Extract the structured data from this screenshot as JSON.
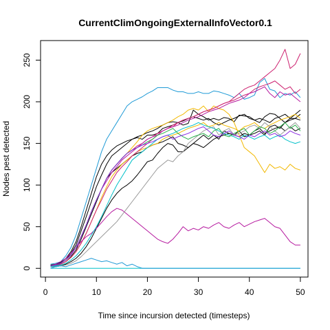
{
  "chart_data": {
    "type": "line",
    "title": "CurrentClimOngoingExternalInfoVector0.1",
    "xlabel": "Time since incursion detected (timesteps)",
    "ylabel": "Nodes pest detected",
    "xlim": [
      0,
      50
    ],
    "ylim": [
      0,
      265
    ],
    "xticks": [
      "0",
      "10",
      "20",
      "30",
      "40",
      "50"
    ],
    "yticks": [
      "0",
      "50",
      "100",
      "150",
      "200",
      "250"
    ],
    "grid": false,
    "x": [
      1,
      2,
      3,
      4,
      5,
      6,
      7,
      8,
      9,
      10,
      11,
      12,
      13,
      14,
      15,
      16,
      17,
      18,
      19,
      20,
      21,
      22,
      23,
      24,
      25,
      26,
      27,
      28,
      29,
      30,
      31,
      32,
      33,
      34,
      35,
      36,
      37,
      38,
      39,
      40,
      41,
      42,
      43,
      44,
      45,
      46,
      47,
      48,
      49,
      50
    ],
    "series": [
      {
        "color": "#1e9ad6",
        "values": [
          5,
          6,
          8,
          15,
          25,
          40,
          60,
          80,
          100,
          120,
          140,
          155,
          165,
          175,
          185,
          195,
          200,
          203,
          206,
          210,
          213,
          217,
          217,
          217,
          214,
          212,
          212,
          210,
          210,
          212,
          210,
          210,
          213,
          212,
          210,
          208,
          205,
          210,
          203,
          205,
          208,
          223,
          228,
          215,
          213,
          205,
          210,
          208,
          212,
          205
        ]
      },
      {
        "color": "#000000",
        "values": [
          4,
          5,
          7,
          12,
          20,
          32,
          50,
          70,
          90,
          110,
          125,
          135,
          142,
          147,
          150,
          153,
          155,
          157,
          155,
          160,
          160,
          162,
          168,
          170,
          172,
          175,
          177,
          180,
          182,
          180,
          178,
          180,
          175,
          172,
          175,
          178,
          180,
          183,
          185,
          180,
          178,
          180,
          178,
          175,
          180,
          182,
          185,
          180,
          180,
          178
        ]
      },
      {
        "color": "#000000",
        "values": [
          3,
          4,
          6,
          10,
          18,
          28,
          45,
          62,
          80,
          98,
          112,
          125,
          135,
          140,
          145,
          150,
          155,
          158,
          160,
          163,
          165,
          168,
          172,
          175,
          176,
          175,
          172,
          174,
          190,
          185,
          182,
          178,
          180,
          178,
          181,
          180,
          176,
          184,
          183,
          182,
          178,
          175,
          182,
          186,
          185,
          180,
          175,
          180,
          185,
          190
        ]
      },
      {
        "color": "#000000",
        "values": [
          2,
          3,
          5,
          8,
          14,
          22,
          35,
          50,
          65,
          80,
          95,
          108,
          115,
          120,
          125,
          130,
          135,
          138,
          140,
          145,
          148,
          150,
          152,
          155,
          158,
          150,
          148,
          145,
          150,
          155,
          160,
          155,
          160,
          155,
          165,
          162,
          160,
          158,
          162,
          160,
          165,
          168,
          162,
          165,
          168,
          170,
          165,
          170,
          165,
          168
        ]
      },
      {
        "color": "#000000",
        "values": [
          2,
          2,
          3,
          5,
          8,
          12,
          18,
          26,
          36,
          48,
          60,
          72,
          82,
          90,
          96,
          100,
          105,
          112,
          120,
          128,
          130,
          138,
          145,
          150,
          148,
          140,
          140,
          145,
          150,
          148,
          145,
          150,
          155,
          158,
          160,
          162,
          160,
          165,
          158,
          160,
          162,
          165,
          160,
          170,
          172,
          168,
          175,
          178,
          180,
          185
        ]
      },
      {
        "color": "#f2b800",
        "values": [
          3,
          4,
          6,
          10,
          16,
          25,
          38,
          52,
          68,
          82,
          95,
          108,
          118,
          125,
          132,
          138,
          145,
          152,
          160,
          165,
          168,
          170,
          172,
          175,
          178,
          182,
          185,
          190,
          192,
          190,
          195,
          188,
          195,
          192,
          190,
          185,
          175,
          160,
          145,
          140,
          135,
          125,
          115,
          125,
          120,
          122,
          118,
          125,
          120,
          118
        ]
      },
      {
        "color": "#f2b800",
        "values": [
          3,
          4,
          5,
          8,
          13,
          20,
          30,
          42,
          56,
          70,
          85,
          98,
          110,
          118,
          125,
          130,
          135,
          140,
          143,
          145,
          148,
          150,
          155,
          158,
          160,
          162,
          165,
          168,
          170,
          172,
          175,
          170,
          172,
          175,
          172,
          170,
          168,
          165,
          170,
          172,
          175,
          170,
          168,
          172,
          175,
          178,
          180,
          182,
          185,
          180
        ]
      },
      {
        "color": "#cc1f6e",
        "values": [
          3,
          4,
          6,
          10,
          16,
          25,
          38,
          52,
          68,
          82,
          95,
          108,
          118,
          125,
          132,
          138,
          142,
          147,
          150,
          155,
          158,
          162,
          165,
          168,
          172,
          175,
          178,
          180,
          182,
          185,
          188,
          190,
          192,
          195,
          198,
          200,
          205,
          210,
          215,
          218,
          220,
          225,
          230,
          235,
          240,
          250,
          263,
          240,
          245,
          258
        ]
      },
      {
        "color": "#cc1f6e",
        "values": [
          3,
          4,
          5,
          8,
          13,
          20,
          30,
          42,
          56,
          70,
          82,
          95,
          105,
          115,
          122,
          128,
          135,
          140,
          145,
          150,
          155,
          160,
          165,
          168,
          170,
          175,
          178,
          180,
          182,
          185,
          188,
          190,
          192,
          195,
          198,
          200,
          202,
          205,
          208,
          210,
          215,
          218,
          220,
          222,
          225,
          220,
          215,
          218,
          210,
          215
        ]
      },
      {
        "color": "#b5179e",
        "values": [
          3,
          5,
          8,
          12,
          18,
          25,
          32,
          38,
          42,
          48,
          55,
          62,
          68,
          72,
          70,
          65,
          60,
          55,
          50,
          45,
          40,
          35,
          32,
          30,
          35,
          42,
          50,
          45,
          48,
          46,
          50,
          48,
          52,
          55,
          50,
          48,
          52,
          55,
          50,
          53,
          56,
          58,
          60,
          55,
          50,
          48,
          40,
          32,
          28,
          28
        ]
      },
      {
        "color": "#b5179e",
        "values": [
          3,
          4,
          6,
          10,
          16,
          25,
          38,
          52,
          68,
          82,
          95,
          105,
          115,
          122,
          130,
          135,
          140,
          145,
          150,
          155,
          158,
          160,
          165,
          168,
          170,
          172,
          175,
          178,
          180,
          182,
          185,
          188,
          190,
          192,
          195,
          198,
          200,
          202,
          205,
          210,
          212,
          215,
          218,
          210,
          205,
          212,
          208,
          210,
          205,
          200
        ]
      },
      {
        "color": "#9a9a9a",
        "values": [
          2,
          2,
          3,
          4,
          6,
          9,
          14,
          20,
          26,
          32,
          38,
          44,
          50,
          56,
          64,
          72,
          80,
          88,
          96,
          104,
          112,
          120,
          125,
          130,
          128,
          135,
          140,
          150,
          155,
          160,
          165,
          168,
          170,
          160,
          165,
          168,
          160,
          162,
          165,
          170,
          172,
          168,
          175,
          170,
          165,
          160,
          165,
          170,
          175,
          168
        ]
      },
      {
        "color": "#00c0c8",
        "values": [
          2,
          3,
          4,
          6,
          10,
          15,
          22,
          30,
          40,
          50,
          62,
          75,
          88,
          100,
          110,
          120,
          130,
          135,
          140,
          145,
          150,
          155,
          158,
          160,
          162,
          165,
          168,
          170,
          172,
          175,
          172,
          170,
          168,
          165,
          162,
          160,
          158,
          155,
          160,
          158,
          155,
          158,
          160,
          155,
          158,
          160,
          155,
          152,
          150,
          152
        ]
      },
      {
        "color": "#00c0c8",
        "values": [
          0,
          0,
          0,
          0,
          0,
          0,
          0,
          0,
          0,
          0,
          0,
          0,
          0,
          0,
          0,
          0,
          0,
          0,
          0,
          0,
          0,
          0,
          0,
          0,
          0,
          0,
          0,
          0,
          0,
          0,
          0,
          0,
          0,
          0,
          0,
          0,
          0,
          0,
          0,
          0,
          0,
          0,
          0,
          0,
          0,
          0,
          0,
          0,
          0,
          0
        ]
      },
      {
        "color": "#1e9ad6",
        "values": [
          0,
          2,
          3,
          2,
          4,
          6,
          8,
          10,
          12,
          10,
          8,
          9,
          7,
          5,
          7,
          3,
          5,
          2,
          0,
          0,
          0,
          0,
          0,
          0,
          0,
          0,
          0,
          0,
          0,
          0,
          0,
          0,
          0,
          0,
          0,
          0,
          0,
          0,
          0,
          0,
          0,
          0,
          0,
          0,
          0,
          0,
          0,
          0,
          0,
          0
        ]
      },
      {
        "color": "#28b04a",
        "values": [
          3,
          4,
          6,
          10,
          16,
          25,
          38,
          52,
          68,
          82,
          95,
          108,
          118,
          125,
          132,
          138,
          142,
          145,
          148,
          152,
          155,
          160,
          162,
          165,
          168,
          162,
          158,
          155,
          158,
          160,
          162,
          158,
          165,
          168,
          160,
          158,
          162,
          165,
          168,
          160,
          165,
          170,
          168,
          162,
          165,
          170,
          175,
          168,
          172,
          165
        ]
      },
      {
        "color": "#8a2be2",
        "values": [
          3,
          4,
          6,
          10,
          16,
          25,
          38,
          52,
          68,
          82,
          95,
          108,
          118,
          125,
          132,
          138,
          142,
          145,
          148,
          150,
          152,
          155,
          158,
          160,
          155,
          158,
          160,
          162,
          165,
          168,
          170,
          165,
          160,
          158,
          162,
          165,
          160,
          158,
          155,
          160,
          158,
          162,
          165,
          160,
          162,
          158,
          160,
          165,
          162,
          160
        ]
      }
    ]
  }
}
